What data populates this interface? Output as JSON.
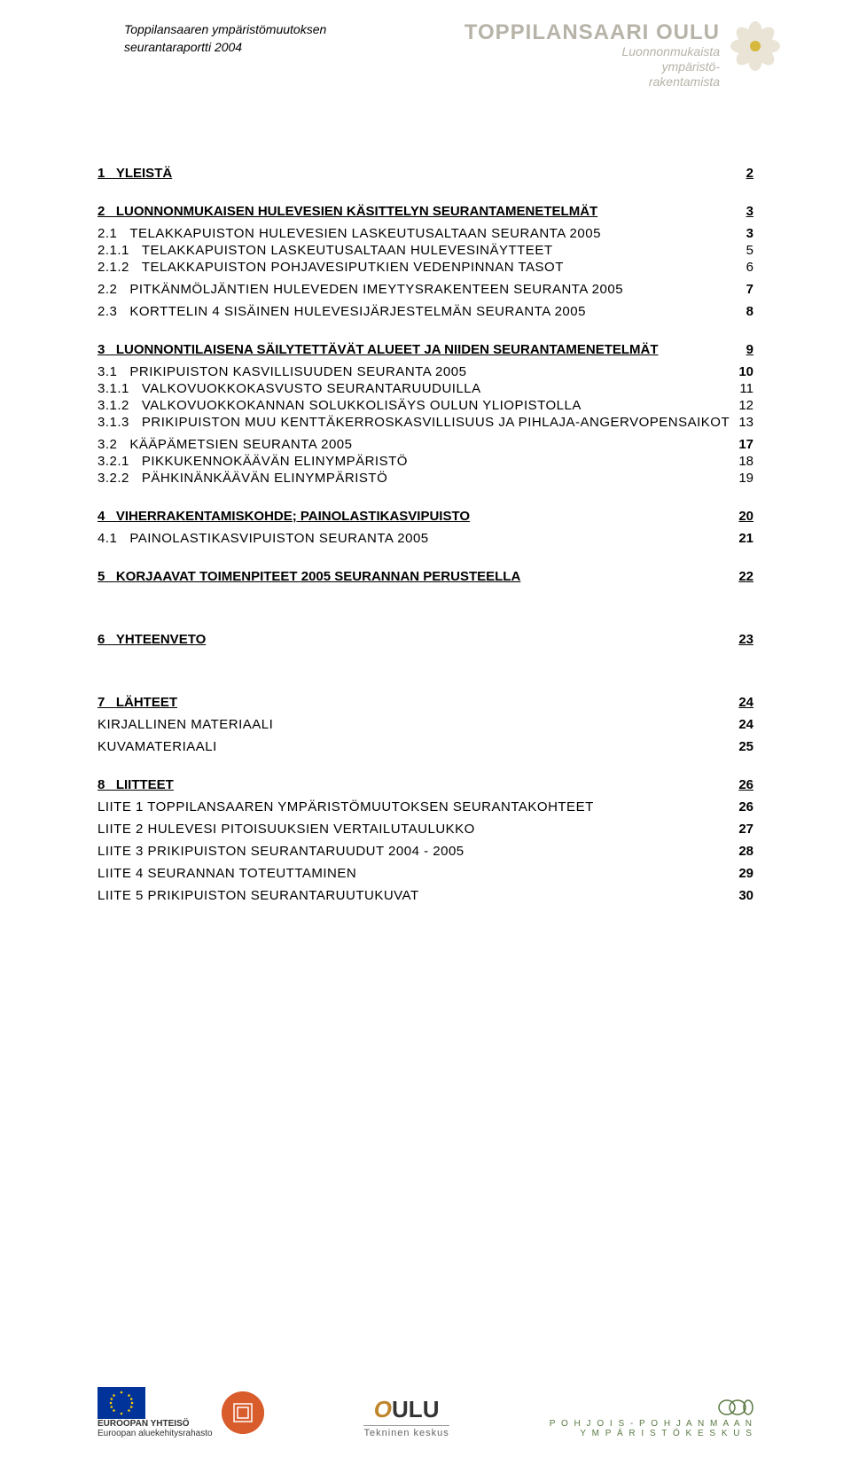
{
  "header": {
    "report_line1": "Toppilansaaren ympäristömuutoksen",
    "report_line2": "seurantaraportti 2004",
    "brand": "TOPPILANSAARI OULU",
    "tagline1": "Luonnonmukaista",
    "tagline2": "ympäristö-",
    "tagline3": "rakentamista"
  },
  "toc": [
    {
      "level": 1,
      "num": "1",
      "label": "YLEISTÄ",
      "page": "2"
    },
    {
      "level": 1,
      "num": "2",
      "label": "LUONNONMUKAISEN HULEVESIEN KÄSITTELYN  SEURANTAMENETELMÄT",
      "page": "3"
    },
    {
      "level": 2,
      "num": "2.1",
      "label": "TELAKKAPUISTON HULEVESIEN LASKEUTUSALTAAN SEURANTA 2005",
      "page": "3",
      "sc": true
    },
    {
      "level": 3,
      "num": "2.1.1",
      "label": "TELAKKAPUISTON LASKEUTUSALTAAN HULEVESINÄYTTEET",
      "page": "5",
      "sc": true
    },
    {
      "level": 3,
      "num": "2.1.2",
      "label": "TELAKKAPUISTON POHJAVESIPUTKIEN VEDENPINNAN TASOT",
      "page": "6",
      "sc": true
    },
    {
      "level": 2,
      "num": "2.2",
      "label": "PITKÄNMÖLJÄNTIEN HULEVEDEN IMEYTYSRAKENTEEN SEURANTA 2005",
      "page": "7",
      "sc": true
    },
    {
      "level": 2,
      "num": "2.3",
      "label": "KORTTELIN 4 SISÄINEN HULEVESIJÄRJESTELMÄN SEURANTA 2005",
      "page": "8",
      "sc": true
    },
    {
      "level": 1,
      "num": "3",
      "label": "LUONNONTILAISENA SÄILYTETTÄVÄT ALUEET JA NIIDEN SEURANTAMENETELMÄT",
      "page": "9"
    },
    {
      "level": 2,
      "num": "3.1",
      "label": "PRIKIPUISTON KASVILLISUUDEN SEURANTA 2005",
      "page": "10",
      "sc": true
    },
    {
      "level": 3,
      "num": "3.1.1",
      "label": "VALKOVUOKKOKASVUSTO SEURANTARUUDUILLA",
      "page": "11",
      "sc": true
    },
    {
      "level": 3,
      "num": "3.1.2",
      "label": "VALKOVUOKKOKANNAN SOLUKKOLISÄYS OULUN YLIOPISTOLLA",
      "page": "12",
      "sc": true
    },
    {
      "level": 3,
      "num": "3.1.3",
      "label": "PRIKIPUISTON MUU KENTTÄKERROSKASVILLISUUS JA PIHLAJA-ANGERVOPENSAIKOT",
      "page": "13",
      "sc": true
    },
    {
      "level": 2,
      "num": "3.2",
      "label": "KÄÄPÄMETSIEN SEURANTA 2005",
      "page": "17",
      "sc": true
    },
    {
      "level": 3,
      "num": "3.2.1",
      "label": "PIKKUKENNOKÄÄVÄN ELINYMPÄRISTÖ",
      "page": "18",
      "sc": true
    },
    {
      "level": 3,
      "num": "3.2.2",
      "label": "PÄHKINÄNKÄÄVÄN ELINYMPÄRISTÖ",
      "page": "19",
      "sc": true
    },
    {
      "level": 1,
      "num": "4",
      "label": "VIHERRAKENTAMISKOHDE; PAINOLASTIKASVIPUISTO",
      "page": "20"
    },
    {
      "level": 2,
      "num": "4.1",
      "label": "PAINOLASTIKASVIPUISTON SEURANTA 2005",
      "page": "21",
      "sc": true
    },
    {
      "level": 1,
      "num": "5",
      "label": "KORJAAVAT TOIMENPITEET 2005 SEURANNAN PERUSTEELLA",
      "page": "22"
    },
    {
      "level": 1,
      "num": "6",
      "label": "YHTEENVETO",
      "page": "23",
      "gap": true
    },
    {
      "level": 1,
      "num": "7",
      "label": "LÄHTEET",
      "page": "24",
      "gap": true
    },
    {
      "level": 2,
      "num": "",
      "label": "KIRJALLINEN MATERIAALI",
      "page": "24",
      "sc": true
    },
    {
      "level": 2,
      "num": "",
      "label": "KUVAMATERIAALI",
      "page": "25",
      "sc": true
    },
    {
      "level": 1,
      "num": "8",
      "label": "LIITTEET",
      "page": "26"
    },
    {
      "level": 2,
      "num": "",
      "label": "LIITE 1 TOPPILANSAAREN YMPÄRISTÖMUUTOKSEN SEURANTAKOHTEET",
      "page": "26",
      "sc": true
    },
    {
      "level": 2,
      "num": "",
      "label": "LIITE 2 HULEVESI PITOISUUKSIEN VERTAILUTAULUKKO",
      "page": "27",
      "sc": true
    },
    {
      "level": 2,
      "num": "",
      "label": "LIITE 3 PRIKIPUISTON SEURANTARUUDUT 2004 - 2005",
      "page": "28",
      "sc": true
    },
    {
      "level": 2,
      "num": "",
      "label": "LIITE 4 SEURANNAN TOTEUTTAMINEN",
      "page": "29",
      "sc": true
    },
    {
      "level": 2,
      "num": "",
      "label": "LIITE 5 PRIKIPUISTON SEURANTARUUTUKUVAT",
      "page": "30",
      "sc": true
    }
  ],
  "footer": {
    "eu_label": "EUROOPAN YHTEISÖ",
    "eu_sub": "Euroopan aluekehitysrahasto",
    "oulu": "OULU",
    "tk": "Tekninen keskus",
    "pp1": "P O H J O I S - P O H J A N M A A N",
    "pp2": "Y M P Ä R I S T Ö K E S K U S"
  },
  "colors": {
    "header_grey": "#b7b3a8",
    "flower_petal": "#e9e4d6",
    "flower_center": "#d6b83c",
    "eu_blue": "#003399",
    "eu_star": "#ffcc00",
    "rf_orange": "#d85c2c",
    "oulu_o": "#c0852a",
    "pp_green": "#5b7a44"
  }
}
